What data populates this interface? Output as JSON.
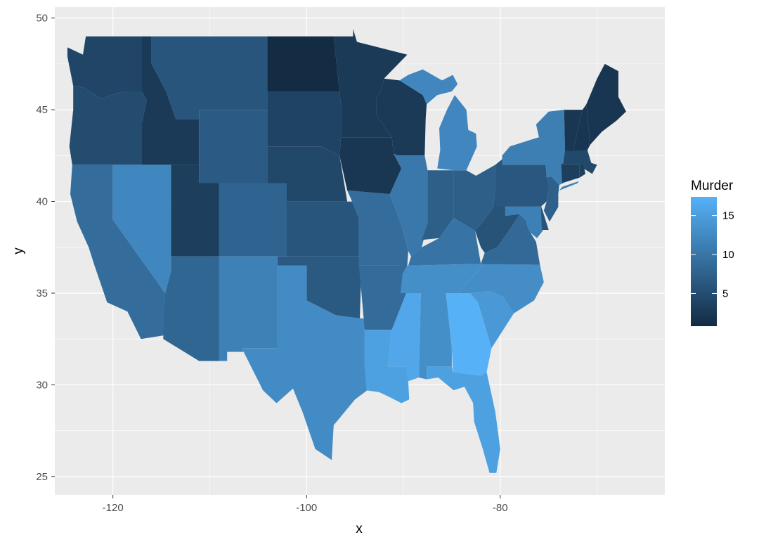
{
  "chart_data": {
    "type": "choropleth",
    "xlabel": "x",
    "ylabel": "y",
    "x_ticks": [
      -120,
      -100,
      -80
    ],
    "y_ticks": [
      25,
      30,
      35,
      40,
      45,
      50
    ],
    "xlim": [
      -126,
      -63
    ],
    "ylim": [
      24,
      50.6
    ],
    "grid": true,
    "panel_background": "#EBEBEB",
    "legend": {
      "title": "Murder",
      "placement": "right",
      "breaks": [
        5,
        10,
        15
      ],
      "range": [
        0.8,
        17.4
      ],
      "low_color": "#132B43",
      "high_color": "#56B1F7"
    },
    "values": {
      "Alabama": 13.2,
      "Arizona": 8.1,
      "Arkansas": 8.8,
      "California": 9.0,
      "Colorado": 7.9,
      "Connecticut": 3.3,
      "Delaware": 5.9,
      "Florida": 15.4,
      "Georgia": 17.4,
      "Idaho": 2.6,
      "Illinois": 10.4,
      "Indiana": 7.2,
      "Iowa": 2.2,
      "Kansas": 6.0,
      "Kentucky": 9.7,
      "Louisiana": 15.4,
      "Maine": 2.1,
      "Maryland": 11.3,
      "Massachusetts": 4.4,
      "Michigan": 12.1,
      "Minnesota": 2.7,
      "Mississippi": 16.1,
      "Missouri": 9.0,
      "Montana": 6.0,
      "Nebraska": 4.3,
      "Nevada": 12.2,
      "New Hampshire": 2.1,
      "New Jersey": 7.4,
      "New Mexico": 11.4,
      "New York": 11.1,
      "North Carolina": 13.0,
      "North Dakota": 0.8,
      "Ohio": 7.3,
      "Oklahoma": 6.6,
      "Oregon": 4.9,
      "Pennsylvania": 6.3,
      "Rhode Island": 3.4,
      "South Carolina": 14.4,
      "South Dakota": 3.8,
      "Tennessee": 13.2,
      "Texas": 12.7,
      "Utah": 3.2,
      "Vermont": 2.2,
      "Virginia": 8.5,
      "Washington": 4.0,
      "West Virginia": 5.7,
      "Wisconsin": 2.6,
      "Wyoming": 6.8
    }
  }
}
